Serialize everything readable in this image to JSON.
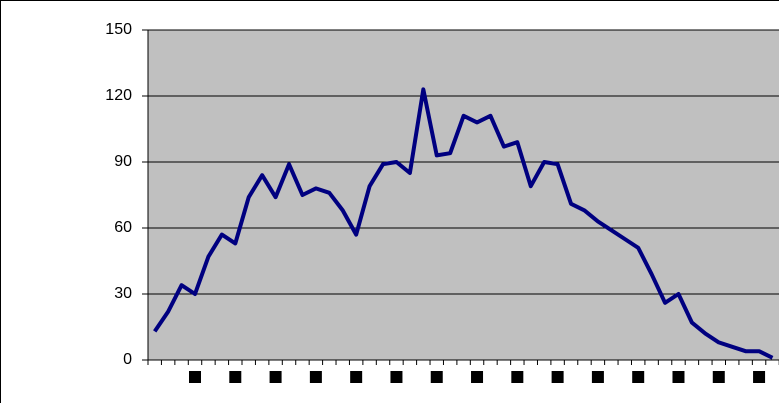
{
  "chart_data": {
    "type": "line",
    "categories": [
      null,
      null,
      null,
      null,
      null,
      null,
      null,
      null,
      null,
      null,
      null,
      null,
      null,
      null,
      null,
      null,
      null,
      null,
      null,
      null,
      null,
      null,
      null,
      null,
      null,
      null,
      null,
      null,
      null,
      null,
      null,
      null,
      null,
      null,
      null,
      null,
      null,
      null,
      null,
      null,
      null,
      null,
      null,
      null,
      null,
      null,
      null
    ],
    "series": [
      {
        "color": "#000080",
        "values": [
          13,
          22,
          34,
          30,
          47,
          57,
          53,
          74,
          84,
          74,
          89,
          75,
          78,
          76,
          68,
          57,
          79,
          89,
          90,
          85,
          123,
          93,
          94,
          111,
          108,
          111,
          97,
          99,
          79,
          90,
          89,
          71,
          68,
          63,
          59,
          55,
          51,
          39,
          26,
          30,
          17,
          12,
          8,
          6,
          4,
          4,
          1
        ]
      }
    ],
    "ylim": [
      0,
      150
    ],
    "yticks": [
      0,
      30,
      60,
      90,
      120,
      150
    ],
    "grid": true
  }
}
